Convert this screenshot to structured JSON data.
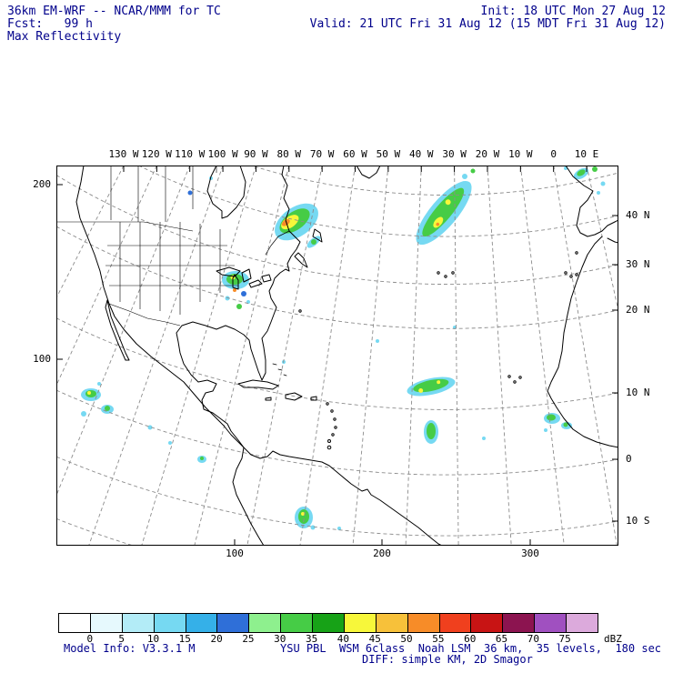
{
  "header": {
    "line1_left": "36km EM-WRF -- NCAR/MMM for TC",
    "line1_right": "Init: 18 UTC Mon 27 Aug 12",
    "line2_left": "Fcst:   99 h",
    "line2_right": "Valid: 21 UTC Fri 31 Aug 12 (15 MDT Fri 31 Aug 12)",
    "line3_left": "Max Reflectivity"
  },
  "axes": {
    "top": [
      "130 W",
      "120 W",
      "110 W",
      "100 W",
      "90 W",
      "80 W",
      "70 W",
      "60 W",
      "50 W",
      "40 W",
      "30 W",
      "20 W",
      "10 W",
      "0",
      "10 E"
    ],
    "left": [
      "200",
      "100"
    ],
    "right": [
      "40 N",
      "30 N",
      "20 N",
      "10 N",
      "0",
      "10 S"
    ],
    "bottom": [
      "100",
      "200",
      "300"
    ]
  },
  "colorbar": {
    "labels": [
      "0",
      "5",
      "10",
      "15",
      "20",
      "25",
      "30",
      "35",
      "40",
      "45",
      "50",
      "55",
      "60",
      "65",
      "70",
      "75"
    ],
    "unit": "dBZ",
    "colors": [
      "#ffffff",
      "#e6f9fd",
      "#b3ecf7",
      "#76d9f2",
      "#35b0e8",
      "#2f6fd8",
      "#8ef08e",
      "#46cc46",
      "#17a217",
      "#f7f73a",
      "#f7c13a",
      "#f78c28",
      "#f0401e",
      "#c81414",
      "#8c1450",
      "#a050c0",
      "#dcaadc"
    ]
  },
  "footer": {
    "left": "Model Info: V3.3.1 M",
    "physics": "YSU PBL  WSM 6class  Noah LSM  36 km,  35 levels,  180 sec",
    "line2": "DIFF: simple KM, 2D Smagor"
  },
  "chart_data": {
    "type": "heatmap",
    "title": "Max Reflectivity",
    "model": "36km EM-WRF -- NCAR/MMM for TC",
    "init_time": "18 UTC Mon 27 Aug 12",
    "forecast_hour": 99,
    "valid_time": "21 UTC Fri 31 Aug 12 (15 MDT Fri 31 Aug 12)",
    "units": "dBZ",
    "colorbar_values": [
      0,
      5,
      10,
      15,
      20,
      25,
      30,
      35,
      40,
      45,
      50,
      55,
      60,
      65,
      70,
      75
    ],
    "lon_ticks": [
      "130 W",
      "120 W",
      "110 W",
      "100 W",
      "90 W",
      "80 W",
      "70 W",
      "60 W",
      "50 W",
      "40 W",
      "30 W",
      "20 W",
      "10 W",
      "0",
      "10 E"
    ],
    "lat_ticks": [
      "40 N",
      "30 N",
      "20 N",
      "10 N",
      "0",
      "10 S"
    ],
    "grid_point_ticks_x": [
      100,
      200,
      300
    ],
    "grid_point_ticks_y": [
      100,
      200
    ],
    "physics_suite": {
      "pbl": "YSU PBL",
      "microphysics": "WSM 6class",
      "land_surface": "Noah LSM",
      "grid": "36 km",
      "levels": "35 levels",
      "timestep": "180 sec",
      "diffusion": "DIFF: simple KM, 2D Smagor",
      "version": "V3.3.1 M"
    },
    "features": [
      {
        "location": "Quebec / Gulf of St. Lawrence storm",
        "approx": "50N 65W",
        "max_dbz": 50
      },
      {
        "location": "central North Atlantic elongated band",
        "approx": "42N 42W",
        "max_dbz": 45
      },
      {
        "location": "northeast Atlantic cells (top right)",
        "approx": "48N 12W",
        "max_dbz": 35
      },
      {
        "location": "Great Lakes / Ohio Valley cluster",
        "approx": "43N 82W",
        "max_dbz": 45
      },
      {
        "location": "eastern Pacific cluster off Mexico",
        "approx": "12N 115W",
        "max_dbz": 40
      },
      {
        "location": "tropical Atlantic wave",
        "approx": "11N 45W",
        "max_dbz": 40
      },
      {
        "location": "tropical Atlantic southern cluster",
        "approx": "6N 44W",
        "max_dbz": 30
      },
      {
        "location": "cells off West Africa",
        "approx": "9N 25W",
        "max_dbz": 30
      },
      {
        "location": "ITCZ cell near northern South America",
        "approx": "2S 60W",
        "max_dbz": 40
      }
    ]
  }
}
